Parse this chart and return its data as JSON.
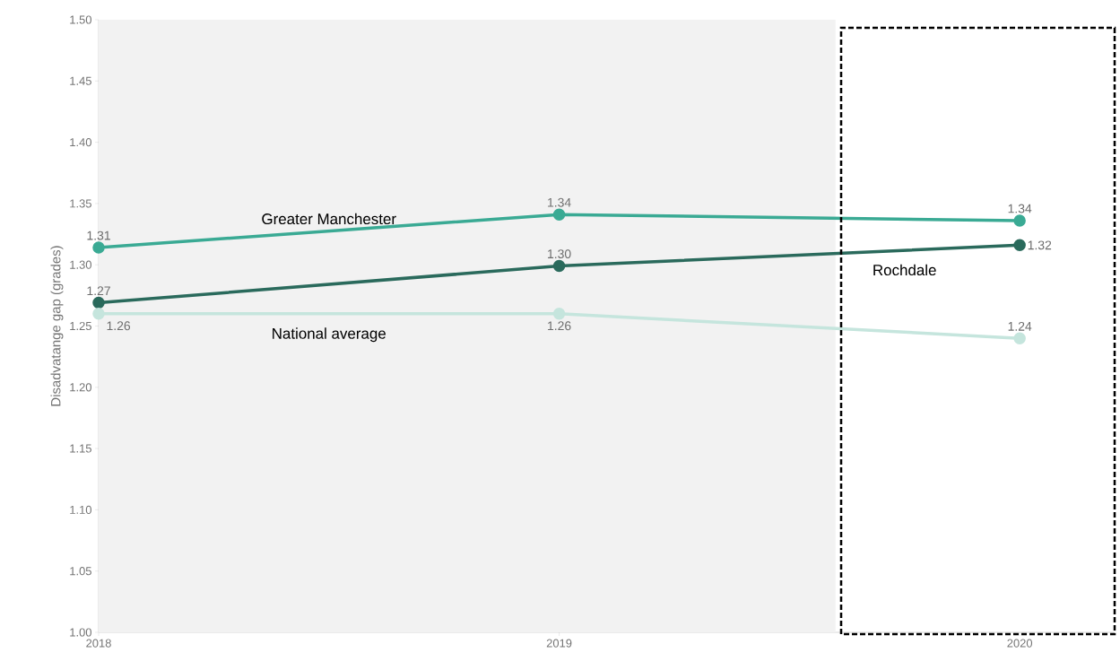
{
  "chart_data": {
    "type": "line",
    "ylabel": "Disadvatange gap (grades)",
    "x": [
      2018,
      2019,
      2020
    ],
    "xlim": [
      2018,
      2020.21
    ],
    "xticks": [
      2018,
      2019,
      2020
    ],
    "ylim": [
      1.0,
      1.5
    ],
    "yticks": [
      {
        "value": 1.0,
        "label": "1.00"
      },
      {
        "value": 1.05,
        "label": "1.05"
      },
      {
        "value": 1.1,
        "label": "1.10"
      },
      {
        "value": 1.15,
        "label": "1.15"
      },
      {
        "value": 1.2,
        "label": "1.20"
      },
      {
        "value": 1.25,
        "label": "1.25"
      },
      {
        "value": 1.3,
        "label": "1.30"
      },
      {
        "value": 1.35,
        "label": "1.35"
      },
      {
        "value": 1.4,
        "label": "1.40"
      },
      {
        "value": 1.45,
        "label": "1.45"
      },
      {
        "value": 1.5,
        "label": "1.50"
      }
    ],
    "marker": "circle",
    "grid": false,
    "bands": [
      {
        "axis": "x",
        "from": 2018,
        "to": 2019.6,
        "color": "#f2f2f2"
      }
    ],
    "series": [
      {
        "name": "Greater Manchester",
        "color": "#3aaa94",
        "values": [
          1.314,
          1.341,
          1.336
        ],
        "value_labels": [
          "1.31",
          "1.34",
          "1.34"
        ]
      },
      {
        "name": "Rochdale",
        "color": "#2a6a5c",
        "values": [
          1.269,
          1.299,
          1.316
        ],
        "value_labels": [
          "1.27",
          "1.30",
          "1.32"
        ]
      },
      {
        "name": "National average",
        "color": "#c5e5dd",
        "values": [
          1.26,
          1.26,
          1.24
        ],
        "value_labels": [
          "1.26",
          "1.26",
          "1.24"
        ]
      }
    ]
  }
}
